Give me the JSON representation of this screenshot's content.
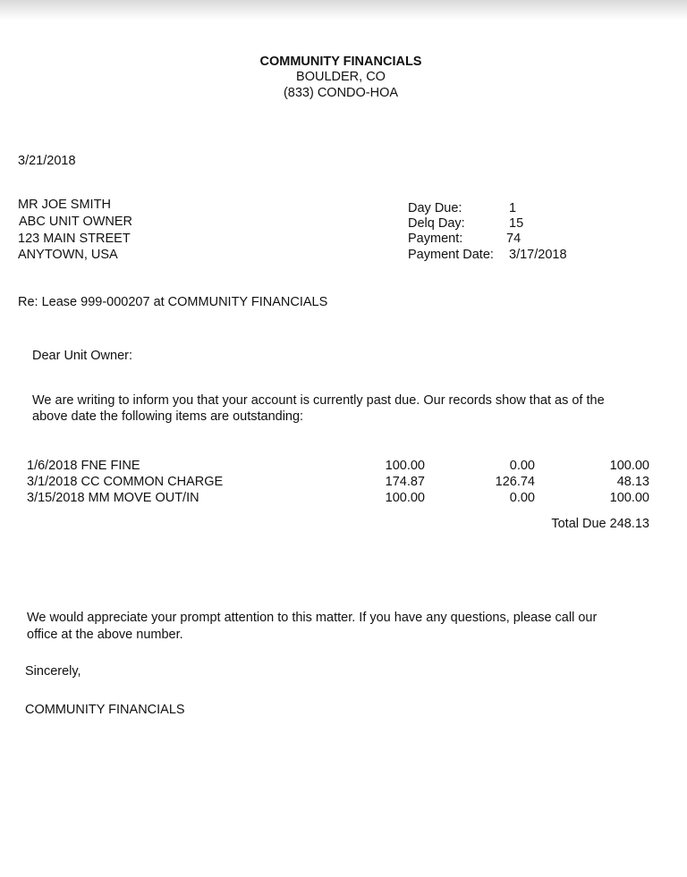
{
  "header": {
    "company": "COMMUNITY FINANCIALS",
    "city": "BOULDER, CO",
    "phone": "(833) CONDO-HOA"
  },
  "date": "3/21/2018",
  "address": [
    "MR JOE SMITH",
    "ABC UNIT OWNER",
    "123 MAIN STREET",
    "ANYTOWN, USA"
  ],
  "account_info": [
    {
      "label": "Day Due:",
      "value": "1"
    },
    {
      "label": "Delq Day:",
      "value": "15"
    },
    {
      "label": "Payment:",
      "value": "74"
    },
    {
      "label": "Payment Date:",
      "value": "3/17/2018"
    }
  ],
  "re_line": "Re: Lease 999-000207 at COMMUNITY FINANCIALS",
  "salutation": "Dear Unit Owner:",
  "intro": [
    "We are writing to inform you that your account is currently past due. Our records show that as of the",
    "above date the following items are outstanding:"
  ],
  "items": [
    {
      "description": "1/6/2018 FNE FINE",
      "amount": "100.00",
      "paid": "0.00",
      "balance": "100.00"
    },
    {
      "description": "3/1/2018 CC COMMON CHARGE",
      "amount": "174.87",
      "paid": "126.74",
      "balance": "48.13"
    },
    {
      "description": "3/15/2018 MM MOVE OUT/IN",
      "amount": "100.00",
      "paid": "0.00",
      "balance": "100.00"
    }
  ],
  "total": "Total Due 248.13",
  "closing": [
    "We would appreciate your prompt attention to this matter. If you have any questions, please call our",
    "office at the above number."
  ],
  "sign_off": "Sincerely,",
  "signature": "COMMUNITY FINANCIALS"
}
